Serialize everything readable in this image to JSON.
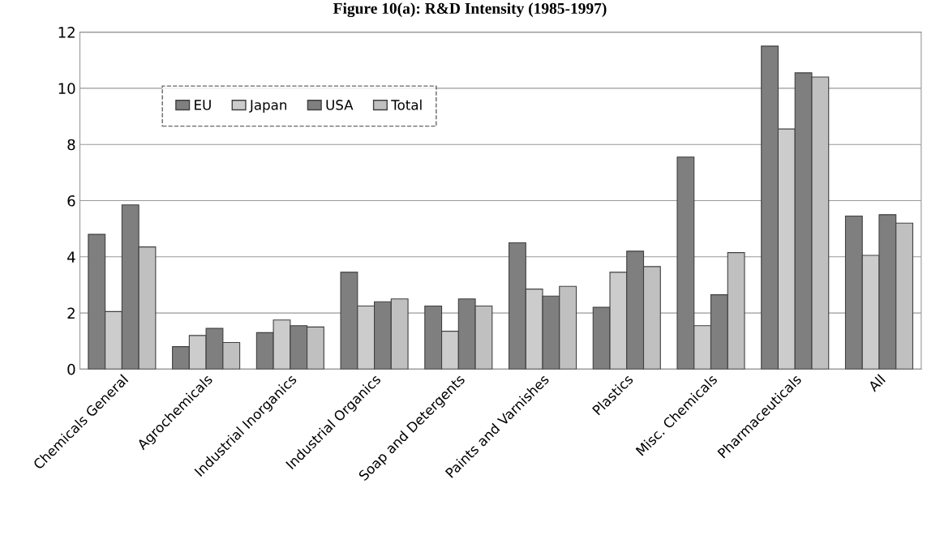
{
  "chart_data": {
    "type": "bar",
    "title": "Figure 10(a): R&D Intensity (1985-1997)",
    "categories": [
      "Chemicals General",
      "Agrochemicals",
      "Industrial Inorganics",
      "Industrial Organics",
      "Soap and Detergents",
      "Paints and Varnishes",
      "Plastics",
      "Misc. Chemicals",
      "Pharmaceuticals",
      "All"
    ],
    "series": [
      {
        "name": "EU",
        "color": "#7f7f7f",
        "values": [
          4.8,
          0.8,
          1.3,
          3.45,
          2.25,
          4.5,
          2.2,
          7.55,
          11.5,
          5.45
        ]
      },
      {
        "name": "Japan",
        "color": "#cccccc",
        "values": [
          2.05,
          1.2,
          1.75,
          2.25,
          1.35,
          2.85,
          3.45,
          1.55,
          8.55,
          4.05
        ]
      },
      {
        "name": "USA",
        "color": "#7f7f7f",
        "values": [
          5.85,
          1.45,
          1.55,
          2.4,
          2.5,
          2.6,
          4.2,
          2.65,
          10.55,
          5.5
        ]
      },
      {
        "name": "Total",
        "color": "#c0c0c0",
        "values": [
          4.35,
          0.95,
          1.5,
          2.5,
          2.25,
          2.95,
          3.65,
          4.15,
          10.4,
          5.2
        ]
      }
    ],
    "ylim": [
      0,
      12
    ],
    "yticks": [
      0,
      2,
      4,
      6,
      8,
      10,
      12
    ],
    "grid": "y",
    "legend": "top left"
  }
}
